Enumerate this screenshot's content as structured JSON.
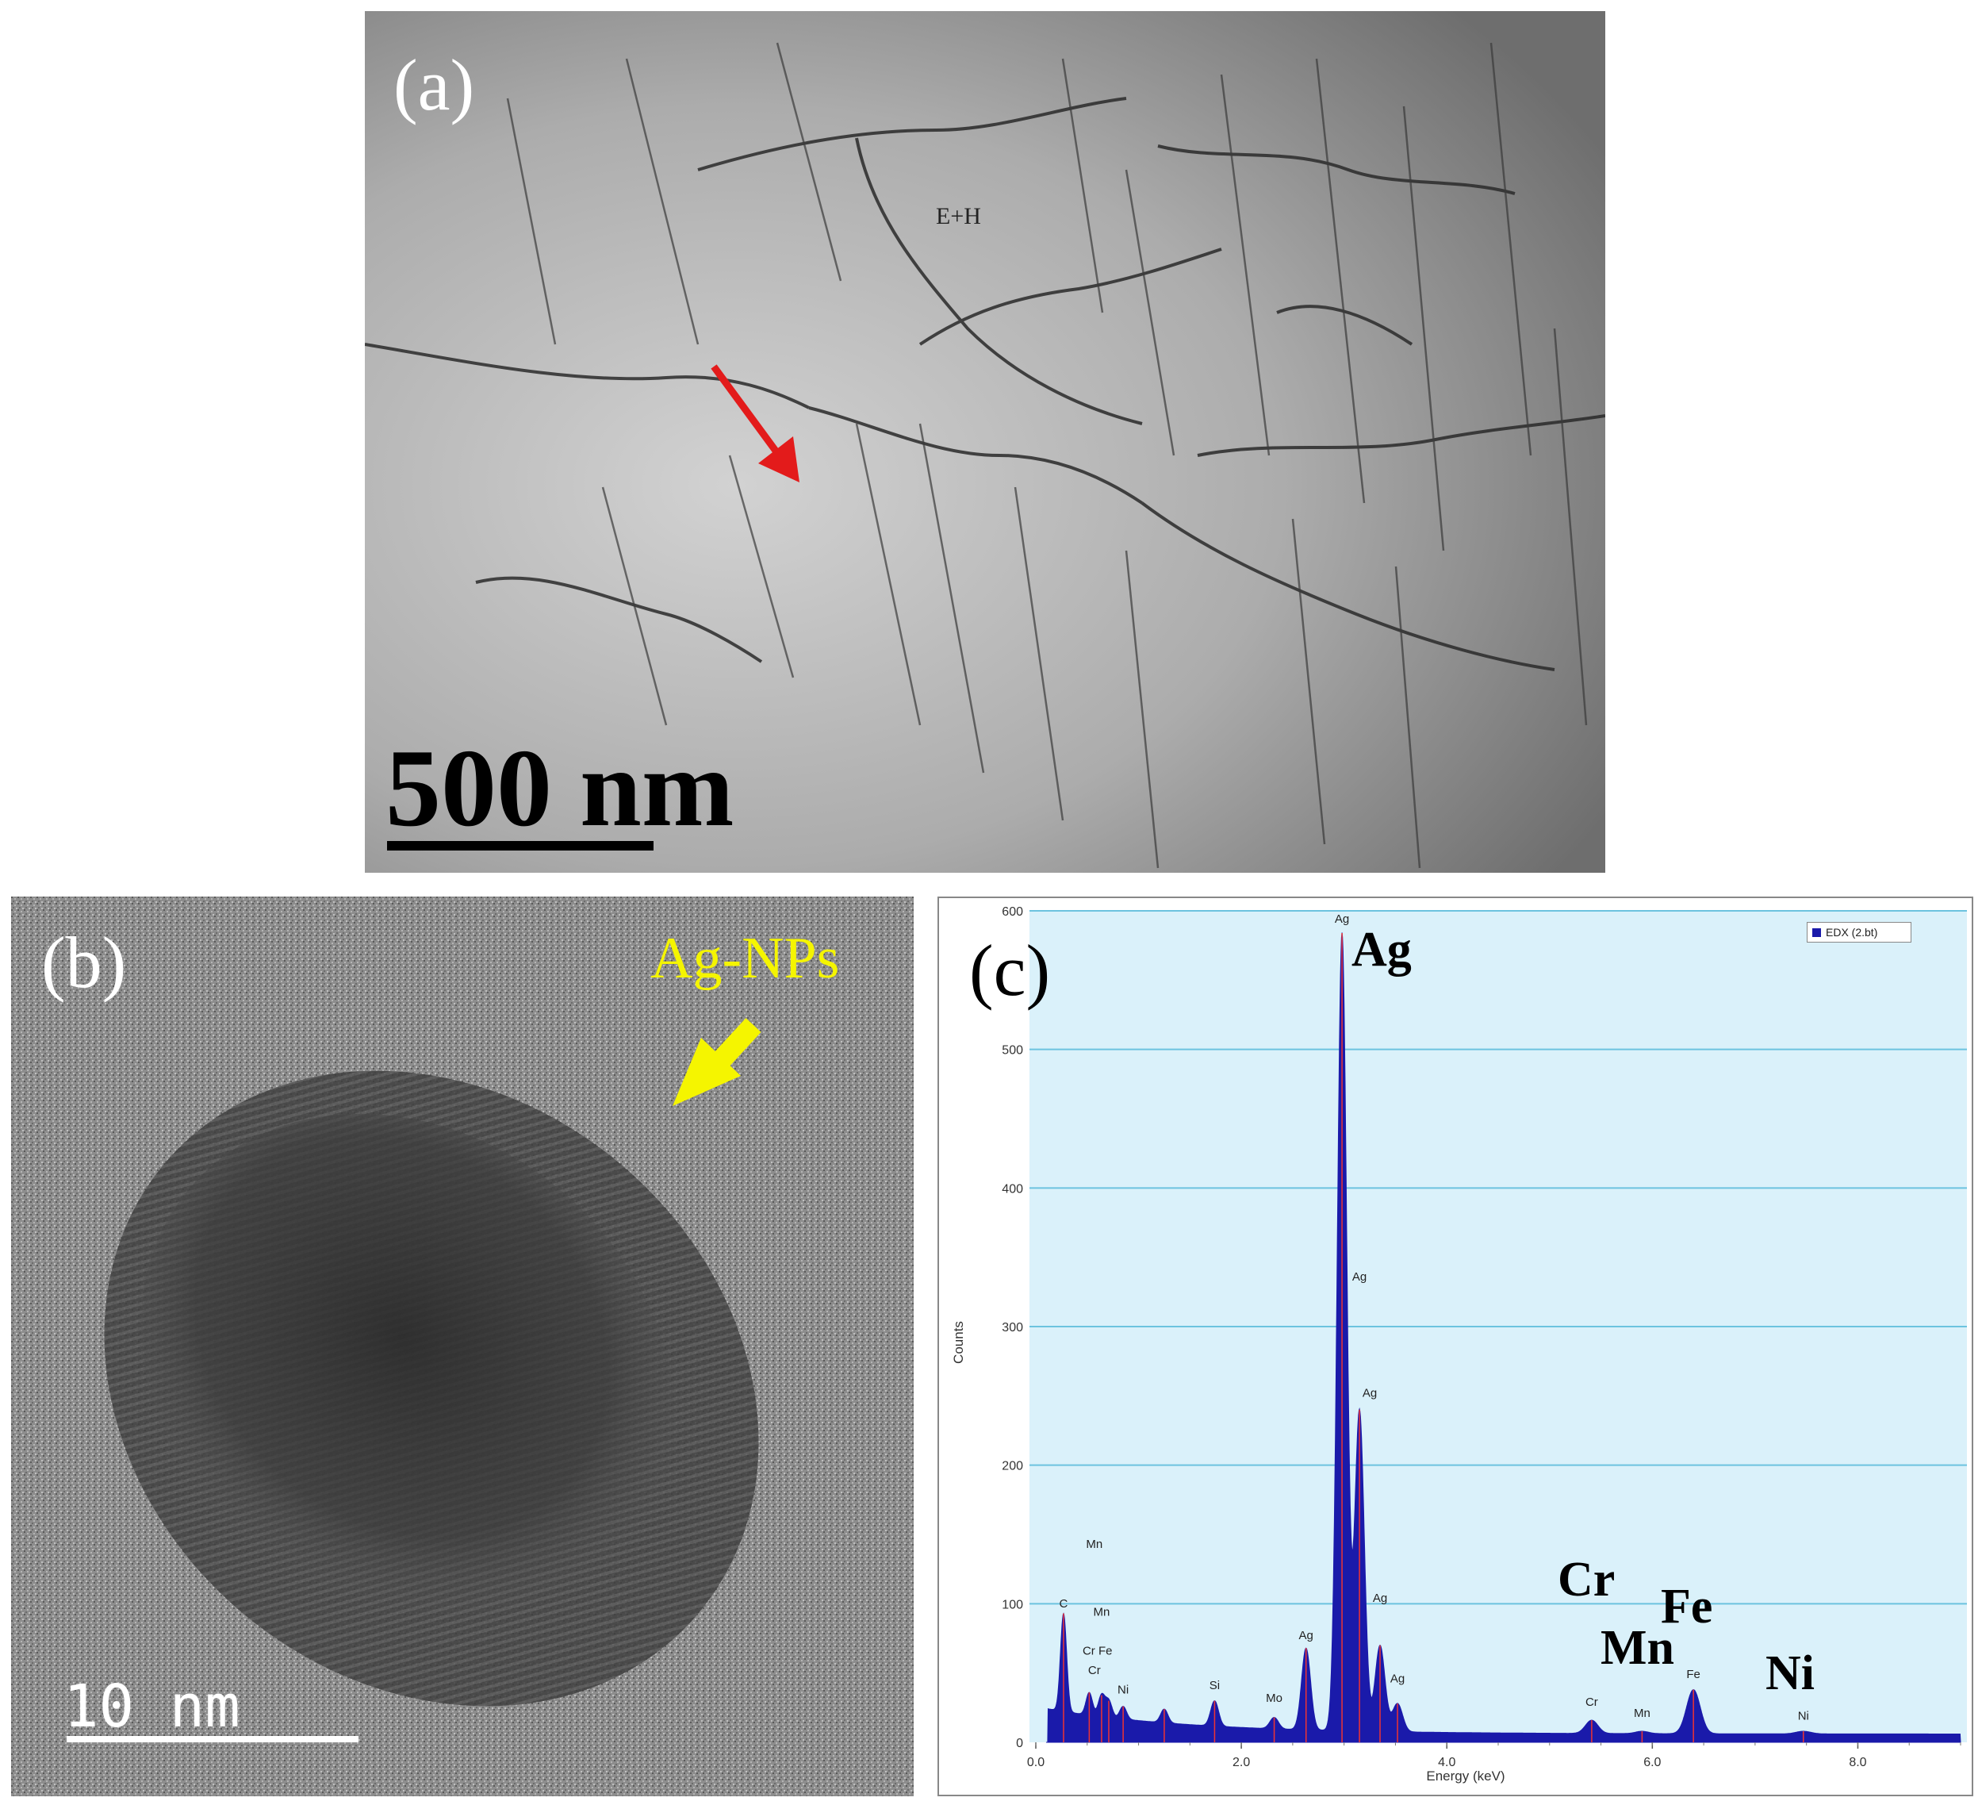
{
  "panels": {
    "a": {
      "label": "(a)",
      "scale_bar": "500 nm",
      "annotation": "E+H"
    },
    "b": {
      "label": "(b)",
      "annotation": "Ag-NPs",
      "scale_bar": "10 nm",
      "colors": {
        "annotation": "#f5f500"
      }
    },
    "c": {
      "label": "(c)"
    }
  },
  "chart_data": {
    "type": "line",
    "title": "",
    "xlabel": "Energy (keV)",
    "ylabel": "Counts",
    "xlim": [
      0,
      9
    ],
    "ylim": [
      0,
      600
    ],
    "x_ticks": [
      "0.0",
      "2.0",
      "4.0",
      "6.0",
      "8.0"
    ],
    "y_ticks": [
      "0",
      "100",
      "200",
      "300",
      "400",
      "500",
      "600"
    ],
    "grid": true,
    "legend": {
      "position": "top-right",
      "entries": [
        "EDX (2.bt)"
      ]
    },
    "series": [
      {
        "name": "EDX (2.bt)",
        "color": "#1a1aaa",
        "peaks": [
          {
            "x": 0.27,
            "y": 93
          },
          {
            "x": 0.52,
            "y": 36
          },
          {
            "x": 0.64,
            "y": 34
          },
          {
            "x": 0.71,
            "y": 30
          },
          {
            "x": 0.85,
            "y": 26
          },
          {
            "x": 1.25,
            "y": 24
          },
          {
            "x": 1.74,
            "y": 30
          },
          {
            "x": 2.32,
            "y": 18
          },
          {
            "x": 2.63,
            "y": 68
          },
          {
            "x": 2.98,
            "y": 584
          },
          {
            "x": 3.15,
            "y": 240
          },
          {
            "x": 3.35,
            "y": 70
          },
          {
            "x": 3.52,
            "y": 28
          },
          {
            "x": 5.41,
            "y": 16
          },
          {
            "x": 5.9,
            "y": 8
          },
          {
            "x": 6.4,
            "y": 38
          },
          {
            "x": 7.47,
            "y": 8
          }
        ]
      }
    ],
    "peak_labels": [
      {
        "text": "C",
        "x": 0.27,
        "y": 95
      },
      {
        "text": "Mn",
        "x": 0.57,
        "y": 138
      },
      {
        "text": "Mn",
        "x": 0.64,
        "y": 89
      },
      {
        "text": "Cr Fe",
        "x": 0.6,
        "y": 61
      },
      {
        "text": "Cr",
        "x": 0.57,
        "y": 47
      },
      {
        "text": "Ni",
        "x": 0.85,
        "y": 33
      },
      {
        "text": "Si",
        "x": 1.74,
        "y": 36
      },
      {
        "text": "Mo",
        "x": 2.32,
        "y": 27
      },
      {
        "text": "Ag",
        "x": 2.63,
        "y": 72
      },
      {
        "text": "Ag",
        "x": 2.98,
        "y": 589
      },
      {
        "text": "Ag",
        "x": 3.15,
        "y": 331
      },
      {
        "text": "Ag",
        "x": 3.25,
        "y": 247
      },
      {
        "text": "Ag",
        "x": 3.35,
        "y": 99
      },
      {
        "text": "Ag",
        "x": 3.52,
        "y": 41
      },
      {
        "text": "Cr",
        "x": 5.41,
        "y": 24
      },
      {
        "text": "Mn",
        "x": 5.9,
        "y": 16
      },
      {
        "text": "Fe",
        "x": 6.4,
        "y": 44
      },
      {
        "text": "Ni",
        "x": 7.47,
        "y": 14
      }
    ],
    "big_labels": [
      "Ag",
      "Cr",
      "Mn",
      "Fe",
      "Ni"
    ]
  }
}
